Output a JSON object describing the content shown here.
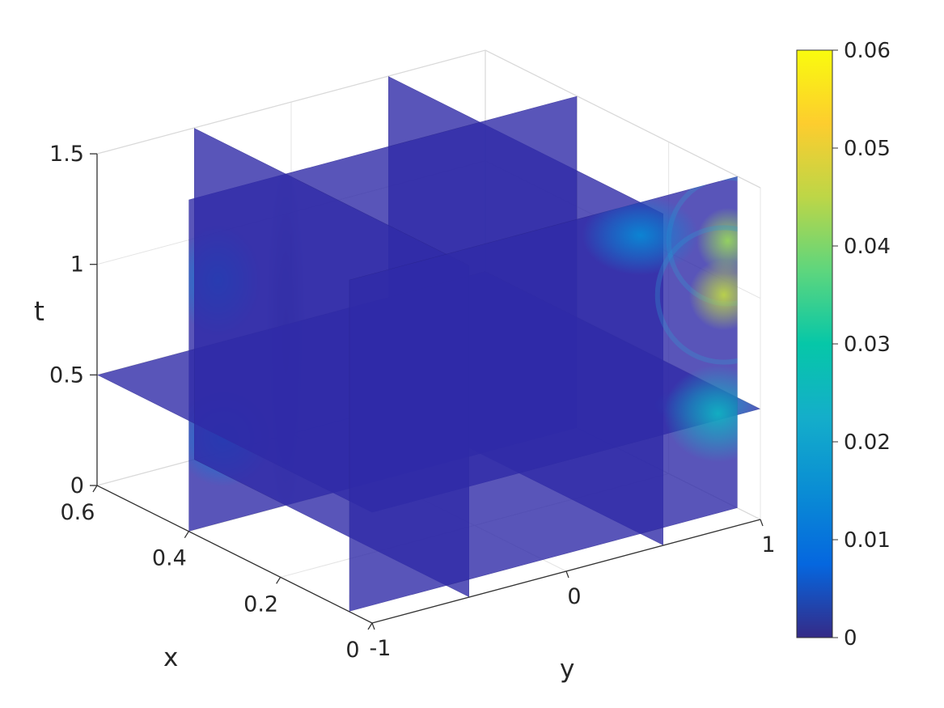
{
  "figure": {
    "background": "#ffffff"
  },
  "chart_data": {
    "type": "heatmap",
    "subtype": "3d-slice-planes",
    "title": "",
    "xlabel": "x",
    "ylabel": "y",
    "zlabel": "t",
    "x_axis": {
      "range": [
        0,
        0.6
      ],
      "ticks": [
        0,
        0.2,
        0.4,
        0.6
      ],
      "tick_labels": [
        "0",
        "0.2",
        "0.4",
        "0.6"
      ]
    },
    "y_axis": {
      "range": [
        -1,
        1
      ],
      "ticks": [
        -1,
        0,
        1
      ],
      "tick_labels": [
        "-1",
        "0",
        "1"
      ]
    },
    "t_axis": {
      "range": [
        0,
        1.5
      ],
      "ticks": [
        0,
        0.5,
        1,
        1.5
      ],
      "tick_labels": [
        "0",
        "0.5",
        "1",
        "1.5"
      ]
    },
    "grid": true,
    "slices": {
      "x": [
        0.05,
        0.4
      ],
      "y": [
        -0.5,
        0.5
      ],
      "t": [
        0.5
      ]
    },
    "base_value": 0.004,
    "hotspots": [
      {
        "plane": "x",
        "at": 0.05,
        "u": 0.95,
        "v": 1.22,
        "value": 0.042,
        "ru": 0.16,
        "rv": 0.15,
        "ring": true
      },
      {
        "plane": "x",
        "at": 0.05,
        "u": 0.93,
        "v": 0.98,
        "value": 0.045,
        "ru": 0.18,
        "rv": 0.16,
        "ring": true
      },
      {
        "plane": "x",
        "at": 0.05,
        "u": 0.9,
        "v": 0.45,
        "value": 0.024,
        "ru": 0.28,
        "rv": 0.22,
        "ring": false
      },
      {
        "plane": "x",
        "at": 0.05,
        "u": 0.5,
        "v": 1.35,
        "value": 0.014,
        "ru": 0.3,
        "rv": 0.18,
        "ring": false
      },
      {
        "plane": "x",
        "at": 0.4,
        "u": -0.85,
        "v": 1.1,
        "value": 0.013,
        "ru": 0.22,
        "rv": 0.25,
        "ring": false
      },
      {
        "plane": "x",
        "at": 0.4,
        "u": -0.82,
        "v": 0.38,
        "value": 0.012,
        "ru": 0.25,
        "rv": 0.22,
        "ring": false
      },
      {
        "plane": "x",
        "at": 0.4,
        "u": -0.5,
        "v": 0.75,
        "value": 0.001,
        "ru": 0.1,
        "rv": 0.8,
        "ring": false
      },
      {
        "plane": "t",
        "at": 0.5,
        "u": 0.05,
        "v": 0.85,
        "value": 0.02,
        "ru": 0.12,
        "rv": 0.4,
        "ring": false
      }
    ],
    "colorbar": {
      "min": 0,
      "max": 0.06,
      "ticks": [
        0,
        0.01,
        0.02,
        0.03,
        0.04,
        0.05,
        0.06
      ],
      "tick_labels": [
        "0",
        "0.01",
        "0.02",
        "0.03",
        "0.04",
        "0.05",
        "0.06"
      ],
      "colormap": "parula",
      "stops": [
        [
          "0",
          "#352a87"
        ],
        [
          "0.125",
          "#0567df"
        ],
        [
          "0.25",
          "#0a8dd4"
        ],
        [
          "0.375",
          "#14aeca"
        ],
        [
          "0.5",
          "#06c7a8"
        ],
        [
          "0.625",
          "#5ed67d"
        ],
        [
          "0.75",
          "#bdd647"
        ],
        [
          "0.875",
          "#fdcd2e"
        ],
        [
          "1",
          "#f9fb0e"
        ]
      ]
    },
    "colors": {
      "slice_base": "#2f2ba8",
      "grid": "#e4e4e4",
      "box_edge": "#d9d9d9",
      "axis": "#333333",
      "text": "#262626"
    }
  }
}
